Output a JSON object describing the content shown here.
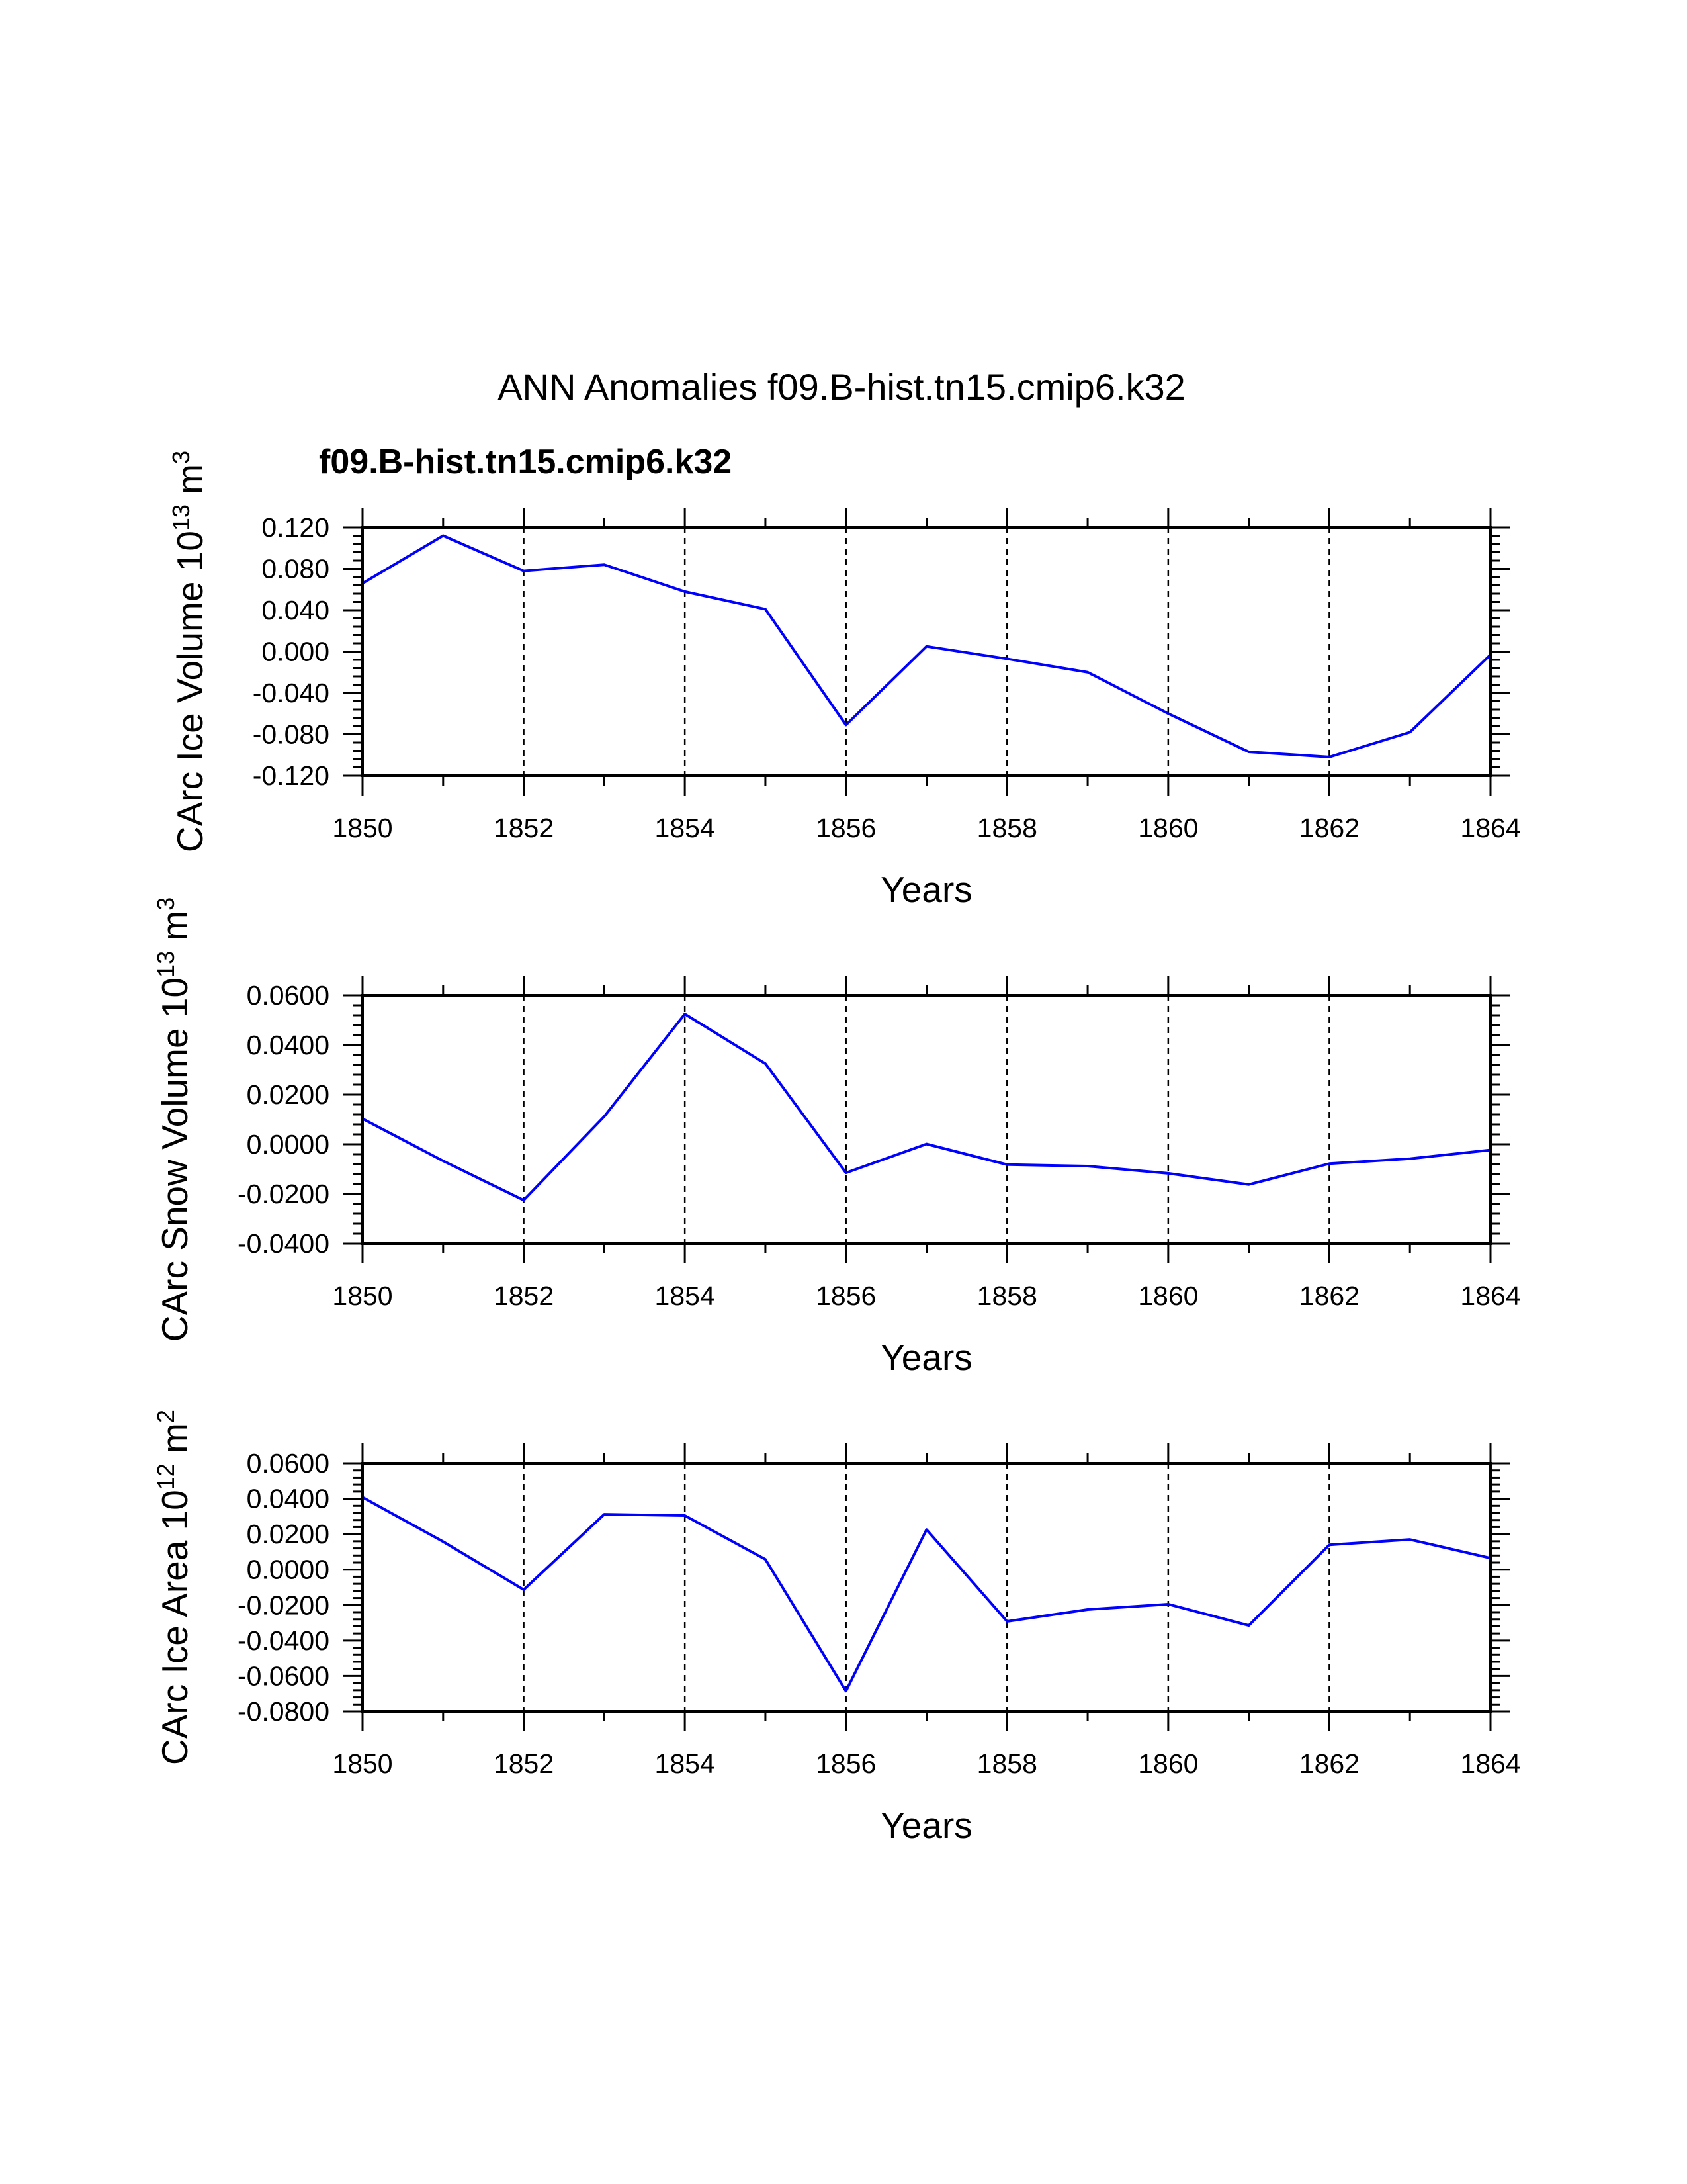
{
  "main_title": "ANN Anomalies f09.B-hist.tn15.cmip6.k32",
  "series_label": "f09.B-hist.tn15.cmip6.k32",
  "colors": {
    "line": "#0000ff",
    "series_label": "#0000ff",
    "axes": "#000000"
  },
  "chart_data": [
    {
      "type": "line",
      "title": "",
      "xlabel": "Years",
      "ylabel": {
        "text": "CArc Ice Volume 10",
        "exponent": "13",
        "unit": " m",
        "unit_exponent": "3"
      },
      "xlim": [
        1850,
        1864
      ],
      "ylim": [
        -0.12,
        0.12
      ],
      "xticks": [
        1850,
        1852,
        1854,
        1856,
        1858,
        1860,
        1862,
        1864
      ],
      "xtick_labels": [
        "1850",
        "1852",
        "1854",
        "1856",
        "1858",
        "1860",
        "1862",
        "1864"
      ],
      "yticks": [
        0.12,
        0.08,
        0.04,
        0.0,
        -0.04,
        -0.08,
        -0.12
      ],
      "ytick_labels": [
        "0.120",
        "0.080",
        "0.040",
        "0.000",
        "-0.040",
        "-0.080",
        "-0.120"
      ],
      "grid": "dashed vertical at major x ticks",
      "series": [
        {
          "name": "f09.B-hist.tn15.cmip6.k32",
          "x": [
            1850,
            1851,
            1852,
            1853,
            1854,
            1855,
            1856,
            1857,
            1858,
            1859,
            1860,
            1861,
            1862,
            1863,
            1864
          ],
          "values": [
            0.066,
            0.112,
            0.078,
            0.084,
            0.058,
            0.041,
            -0.071,
            0.005,
            -0.007,
            -0.02,
            -0.06,
            -0.097,
            -0.102,
            -0.078,
            -0.003
          ]
        }
      ]
    },
    {
      "type": "line",
      "title": "",
      "xlabel": "Years",
      "ylabel": {
        "text": "CArc Snow Volume 10",
        "exponent": "13",
        "unit": " m",
        "unit_exponent": "3"
      },
      "xlim": [
        1850,
        1864
      ],
      "ylim": [
        -0.04,
        0.06
      ],
      "xticks": [
        1850,
        1852,
        1854,
        1856,
        1858,
        1860,
        1862,
        1864
      ],
      "xtick_labels": [
        "1850",
        "1852",
        "1854",
        "1856",
        "1858",
        "1860",
        "1862",
        "1864"
      ],
      "yticks": [
        0.06,
        0.04,
        0.02,
        0.0,
        -0.02,
        -0.04
      ],
      "ytick_labels": [
        "0.0600",
        "0.0400",
        "0.0200",
        "0.0000",
        "-0.0200",
        "-0.0400"
      ],
      "grid": "dashed vertical at major x ticks",
      "series": [
        {
          "name": "f09.B-hist.tn15.cmip6.k32",
          "x": [
            1850,
            1851,
            1852,
            1853,
            1854,
            1855,
            1856,
            1857,
            1858,
            1859,
            1860,
            1861,
            1862,
            1863,
            1864
          ],
          "values": [
            0.0103,
            -0.0067,
            -0.0225,
            0.0112,
            0.0525,
            0.0325,
            -0.0115,
            0.0001,
            -0.0082,
            -0.0088,
            -0.0117,
            -0.0162,
            -0.0078,
            -0.0058,
            -0.0023
          ]
        }
      ]
    },
    {
      "type": "line",
      "title": "",
      "xlabel": "Years",
      "ylabel": {
        "text": "CArc Ice Area 10",
        "exponent": "12",
        "unit": " m",
        "unit_exponent": "2"
      },
      "xlim": [
        1850,
        1864
      ],
      "ylim": [
        -0.08,
        0.06
      ],
      "xticks": [
        1850,
        1852,
        1854,
        1856,
        1858,
        1860,
        1862,
        1864
      ],
      "xtick_labels": [
        "1850",
        "1852",
        "1854",
        "1856",
        "1858",
        "1860",
        "1862",
        "1864"
      ],
      "yticks": [
        0.06,
        0.04,
        0.02,
        0.0,
        -0.02,
        -0.04,
        -0.06,
        -0.08
      ],
      "ytick_labels": [
        "0.0600",
        "0.0400",
        "0.0200",
        "0.0000",
        "-0.0200",
        "-0.0400",
        "-0.0600",
        "-0.0800"
      ],
      "grid": "dashed vertical at major x ticks",
      "series": [
        {
          "name": "f09.B-hist.tn15.cmip6.k32",
          "x": [
            1850,
            1851,
            1852,
            1853,
            1854,
            1855,
            1856,
            1857,
            1858,
            1859,
            1860,
            1861,
            1862,
            1863,
            1864
          ],
          "values": [
            0.0408,
            0.0158,
            -0.0113,
            0.0312,
            0.0305,
            0.0058,
            -0.0685,
            0.0226,
            -0.0292,
            -0.0225,
            -0.0195,
            -0.0315,
            0.014,
            0.017,
            0.0065
          ]
        }
      ]
    }
  ]
}
